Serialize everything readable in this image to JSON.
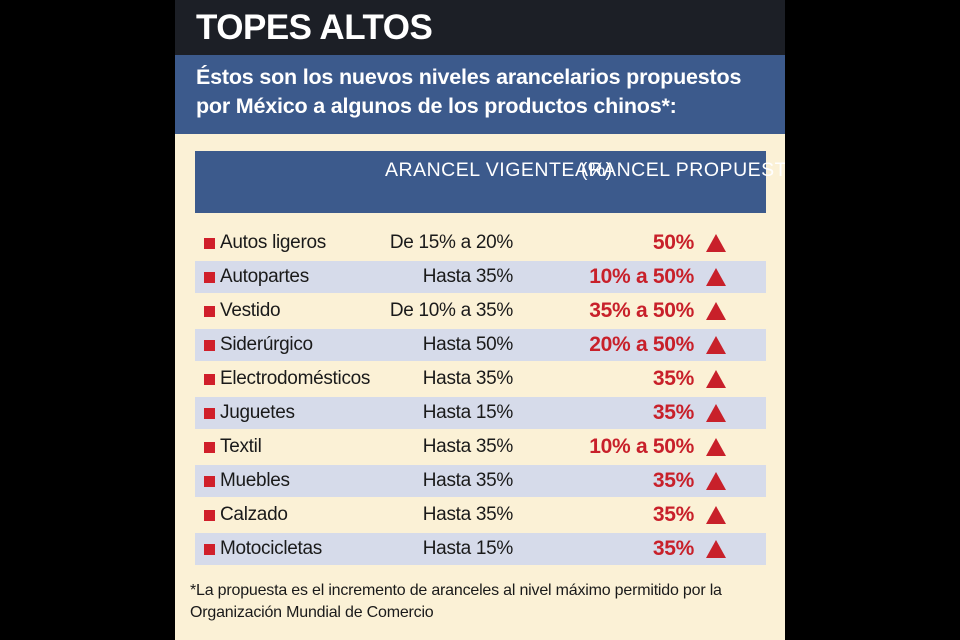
{
  "header": {
    "title": "TOPES ALTOS",
    "subtitle": "Éstos son los nuevos niveles arancelarios propuestos por México a algunos de los productos chinos*:"
  },
  "table": {
    "col_vigente": "ARANCEL VIGENTE (%)",
    "col_propuesto": "ARANCEL PROPUESTO (%)"
  },
  "footnote": "*La propuesta es el incremento de aranceles al nivel máximo permitido por la Organización Mundial de Comercio",
  "colors": {
    "accent_red": "#c8202a",
    "header_blue": "#3c5a8c",
    "title_dark": "#1c1f26",
    "panel_bg": "#fbf1d6",
    "row_shade": "#d6dbea"
  },
  "icons": {
    "increase": "up-triangle-icon",
    "bullet": "square-bullet-icon"
  },
  "chart_data": {
    "type": "table",
    "title": "TOPES ALTOS",
    "columns": [
      "",
      "ARANCEL VIGENTE (%)",
      "ARANCEL PROPUESTO (%)"
    ],
    "rows": [
      {
        "producto": "Autos ligeros",
        "vigente": "De 15% a 20%",
        "propuesto": "50%"
      },
      {
        "producto": "Autopartes",
        "vigente": "Hasta 35%",
        "propuesto": "10% a 50%"
      },
      {
        "producto": "Vestido",
        "vigente": "De 10% a 35%",
        "propuesto": "35% a 50%"
      },
      {
        "producto": "Siderúrgico",
        "vigente": "Hasta 50%",
        "propuesto": "20% a 50%"
      },
      {
        "producto": "Electrodomésticos",
        "vigente": "Hasta 35%",
        "propuesto": "35%"
      },
      {
        "producto": "Juguetes",
        "vigente": "Hasta 15%",
        "propuesto": "35%"
      },
      {
        "producto": "Textil",
        "vigente": "Hasta 35%",
        "propuesto": "10% a 50%"
      },
      {
        "producto": "Muebles",
        "vigente": "Hasta 35%",
        "propuesto": "35%"
      },
      {
        "producto": "Calzado",
        "vigente": "Hasta 35%",
        "propuesto": "35%"
      },
      {
        "producto": "Motocicletas",
        "vigente": "Hasta 15%",
        "propuesto": "35%"
      }
    ]
  }
}
